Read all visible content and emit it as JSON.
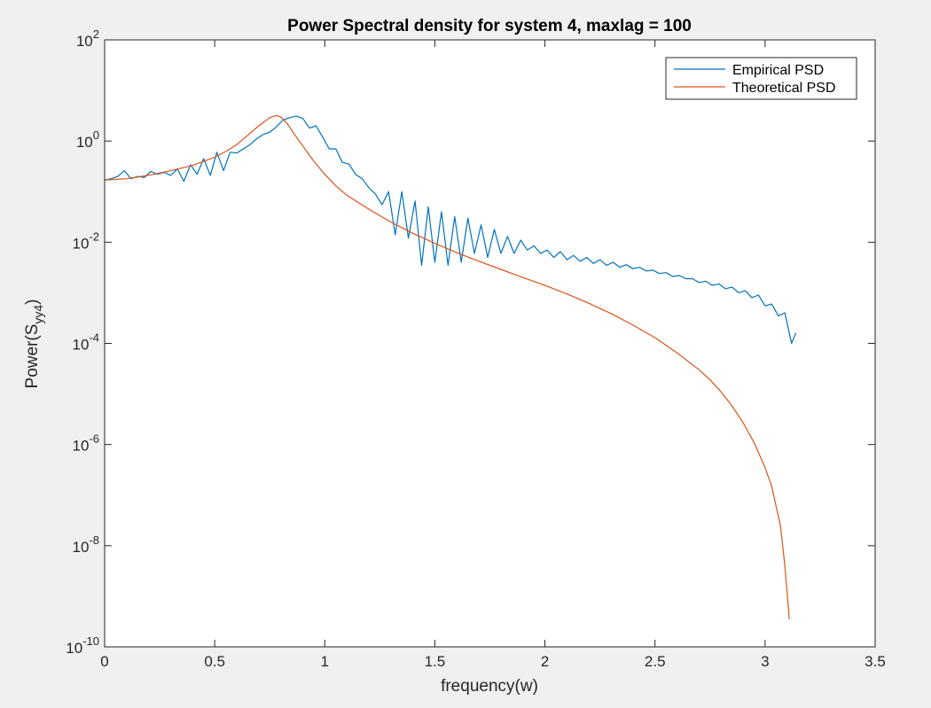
{
  "chart_data": {
    "type": "line",
    "title": "Power Spectral density for system 4, maxlag = 100",
    "xlabel": "frequency(w)",
    "ylabel": {
      "base": "Power(S",
      "subscript": "yy4",
      "suffix": ")"
    },
    "xlim": [
      0,
      3.5
    ],
    "ylim": [
      1e-10,
      100
    ],
    "yscale": "log",
    "xticks": [
      0,
      0.5,
      1,
      1.5,
      2,
      2.5,
      3,
      3.5
    ],
    "xtick_labels": [
      "0",
      "0.5",
      "1",
      "1.5",
      "2",
      "2.5",
      "3",
      "3.5"
    ],
    "yticks": [
      {
        "value": 100.0,
        "base": "10",
        "exp": "2"
      },
      {
        "value": 1.0,
        "base": "10",
        "exp": "0"
      },
      {
        "value": 0.01,
        "base": "10",
        "exp": "-2"
      },
      {
        "value": 0.0001,
        "base": "10",
        "exp": "-4"
      },
      {
        "value": 1e-06,
        "base": "10",
        "exp": "-6"
      },
      {
        "value": 1e-08,
        "base": "10",
        "exp": "-8"
      },
      {
        "value": 1e-10,
        "base": "10",
        "exp": "-10"
      }
    ],
    "grid": false,
    "legend_position": "top-right",
    "series": [
      {
        "name": "Empirical PSD",
        "color": "#0072bd",
        "x": [
          0,
          0.03,
          0.06,
          0.09,
          0.12,
          0.15,
          0.18,
          0.21,
          0.24,
          0.27,
          0.3,
          0.33,
          0.36,
          0.39,
          0.42,
          0.45,
          0.48,
          0.51,
          0.54,
          0.57,
          0.6,
          0.63,
          0.66,
          0.69,
          0.72,
          0.75,
          0.78,
          0.81,
          0.84,
          0.87,
          0.9,
          0.93,
          0.96,
          0.99,
          1.02,
          1.05,
          1.08,
          1.11,
          1.14,
          1.17,
          1.2,
          1.23,
          1.26,
          1.29,
          1.32,
          1.35,
          1.38,
          1.41,
          1.44,
          1.47,
          1.5,
          1.53,
          1.56,
          1.59,
          1.62,
          1.65,
          1.68,
          1.71,
          1.74,
          1.77,
          1.8,
          1.83,
          1.86,
          1.89,
          1.92,
          1.95,
          1.98,
          2.01,
          2.04,
          2.07,
          2.1,
          2.13,
          2.16,
          2.19,
          2.22,
          2.25,
          2.28,
          2.31,
          2.34,
          2.37,
          2.4,
          2.43,
          2.46,
          2.49,
          2.52,
          2.55,
          2.58,
          2.61,
          2.64,
          2.67,
          2.7,
          2.73,
          2.76,
          2.79,
          2.82,
          2.85,
          2.88,
          2.91,
          2.94,
          2.97,
          3.0,
          3.03,
          3.06,
          3.09,
          3.12,
          3.14
        ],
        "y": [
          0.17,
          0.18,
          0.2,
          0.26,
          0.18,
          0.2,
          0.19,
          0.25,
          0.22,
          0.24,
          0.21,
          0.28,
          0.16,
          0.34,
          0.22,
          0.45,
          0.21,
          0.6,
          0.26,
          0.6,
          0.58,
          0.7,
          0.85,
          1.1,
          1.35,
          1.5,
          1.9,
          2.6,
          2.9,
          3.1,
          2.8,
          1.8,
          2.0,
          1.2,
          0.7,
          0.7,
          0.38,
          0.35,
          0.22,
          0.18,
          0.12,
          0.09,
          0.055,
          0.1,
          0.014,
          0.1,
          0.012,
          0.065,
          0.0035,
          0.05,
          0.004,
          0.04,
          0.0035,
          0.032,
          0.004,
          0.03,
          0.006,
          0.022,
          0.005,
          0.018,
          0.006,
          0.013,
          0.006,
          0.011,
          0.007,
          0.0085,
          0.006,
          0.007,
          0.005,
          0.0065,
          0.0045,
          0.0055,
          0.0042,
          0.005,
          0.0038,
          0.0045,
          0.0035,
          0.004,
          0.0032,
          0.0036,
          0.003,
          0.0032,
          0.0027,
          0.0028,
          0.0024,
          0.0025,
          0.0021,
          0.0022,
          0.0019,
          0.0019,
          0.0016,
          0.0017,
          0.0014,
          0.0015,
          0.0012,
          0.0013,
          0.001,
          0.0011,
          0.0008,
          0.0009,
          0.00055,
          0.0006,
          0.00035,
          0.0004,
          0.0001,
          0.00016
        ]
      },
      {
        "name": "Theoretical PSD",
        "color": "#d95319",
        "x": [
          0,
          0.1,
          0.2,
          0.3,
          0.4,
          0.5,
          0.55,
          0.6,
          0.65,
          0.7,
          0.75,
          0.78,
          0.8,
          0.83,
          0.86,
          0.9,
          0.95,
          1.0,
          1.05,
          1.1,
          1.2,
          1.3,
          1.4,
          1.5,
          1.6,
          1.7,
          1.8,
          1.9,
          2.0,
          2.1,
          2.2,
          2.3,
          2.4,
          2.5,
          2.6,
          2.7,
          2.75,
          2.8,
          2.85,
          2.9,
          2.95,
          3.0,
          3.03,
          3.05,
          3.07,
          3.09,
          3.11
        ],
        "y": [
          0.17,
          0.18,
          0.21,
          0.26,
          0.33,
          0.48,
          0.62,
          0.85,
          1.3,
          2.0,
          2.9,
          3.2,
          3.0,
          2.2,
          1.4,
          0.8,
          0.4,
          0.22,
          0.13,
          0.085,
          0.045,
          0.025,
          0.015,
          0.0095,
          0.0062,
          0.0042,
          0.0029,
          0.002,
          0.0014,
          0.00095,
          0.00062,
          0.00039,
          0.00023,
          0.00013,
          6.5e-05,
          3e-05,
          1.9e-05,
          1.1e-05,
          5.8e-06,
          2.7e-06,
          1.1e-06,
          3.5e-07,
          1.5e-07,
          6e-08,
          2.5e-08,
          4e-09,
          3.5e-10
        ]
      }
    ]
  }
}
